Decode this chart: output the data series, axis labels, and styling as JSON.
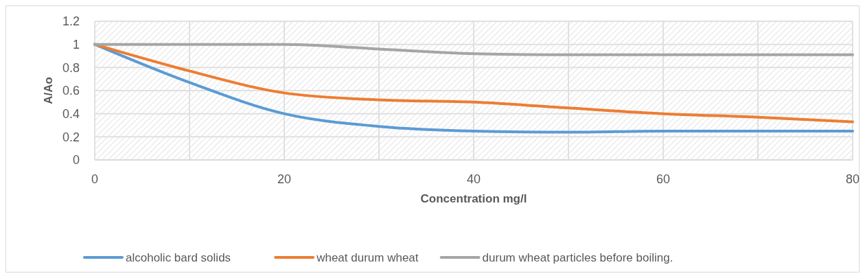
{
  "chart_data": {
    "type": "line",
    "xlabel": "Concentration mg/l",
    "ylabel": "A/Ao",
    "x": [
      0,
      10,
      20,
      30,
      40,
      50,
      60,
      70,
      80
    ],
    "series": [
      {
        "name": "alcoholic bard solids",
        "color": "#5b9bd5",
        "values": [
          1,
          0.67,
          0.4,
          0.29,
          0.25,
          0.24,
          0.25,
          0.25,
          0.25
        ]
      },
      {
        "name": "wheat durum wheat",
        "color": "#ed7d31",
        "values": [
          1,
          0.77,
          0.58,
          0.52,
          0.5,
          0.45,
          0.4,
          0.37,
          0.33
        ]
      },
      {
        "name": "durum wheat particles before boiling.",
        "color": "#a5a5a5",
        "values": [
          1,
          1,
          1,
          0.96,
          0.92,
          0.91,
          0.91,
          0.91,
          0.91
        ]
      }
    ],
    "xlim": [
      0,
      80
    ],
    "xticks": [
      0,
      {
        "value": 10,
        "label": null
      },
      20,
      {
        "value": 30,
        "label": null
      },
      40,
      {
        "value": 50,
        "label": null
      },
      60,
      {
        "value": 70,
        "label": null
      },
      80
    ],
    "ylim": [
      0,
      1.2
    ],
    "yticks": [
      0,
      0.2,
      0.4,
      0.6,
      0.8,
      1,
      1.2
    ],
    "grid": true,
    "legend": "bottom",
    "marker": "none",
    "line_style": "solid"
  }
}
